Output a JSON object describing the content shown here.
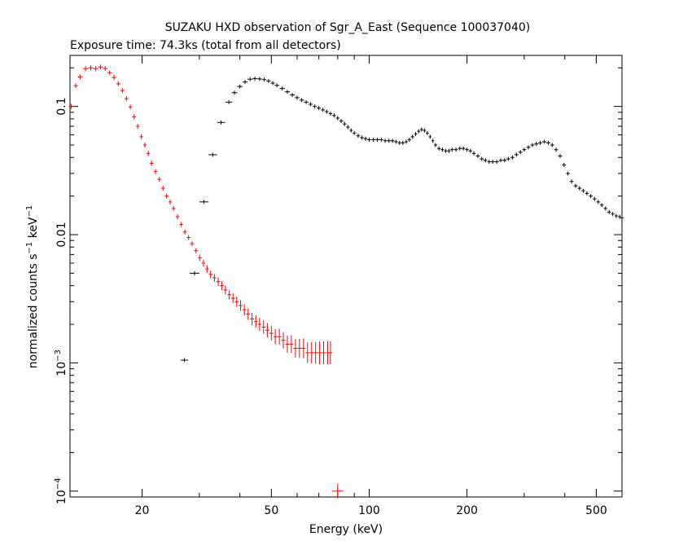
{
  "chart_data": {
    "type": "scatter",
    "title": "SUZAKU HXD observation of Sgr_A_East (Sequence 100037040)",
    "subtitle": "Exposure time: 74.3ks (total from all detectors)",
    "xlabel": "Energy (keV)",
    "ylabel": "normalized counts s-1 keV-1",
    "xscale": "log",
    "yscale": "log",
    "xlim": [
      12,
      600
    ],
    "ylim": [
      9e-05,
      0.25
    ],
    "x_ticks": [
      {
        "value": 20,
        "label": "20"
      },
      {
        "value": 50,
        "label": "50"
      },
      {
        "value": 100,
        "label": "100"
      },
      {
        "value": 200,
        "label": "200"
      },
      {
        "value": 500,
        "label": "500"
      }
    ],
    "y_ticks": [
      {
        "value": 0.1,
        "label": "0.1"
      },
      {
        "value": 0.01,
        "label": "0.01"
      },
      {
        "value": 0.001,
        "label": "10",
        "exp": "−3"
      },
      {
        "value": 0.0001,
        "label": "10",
        "exp": "−4"
      }
    ],
    "grid": false,
    "legend": "none",
    "series": [
      {
        "color": "#ff0000",
        "points": [
          [
            12.1,
            0.1
          ],
          [
            12.5,
            0.145
          ],
          [
            12.9,
            0.17
          ],
          [
            13.4,
            0.197
          ],
          [
            13.9,
            0.2
          ],
          [
            14.4,
            0.197
          ],
          [
            14.9,
            0.203
          ],
          [
            15.4,
            0.198
          ],
          [
            15.9,
            0.183
          ],
          [
            16.4,
            0.168
          ],
          [
            16.9,
            0.15
          ],
          [
            17.4,
            0.133
          ],
          [
            17.9,
            0.115
          ],
          [
            18.4,
            0.099
          ],
          [
            18.9,
            0.083
          ],
          [
            19.4,
            0.07
          ],
          [
            19.9,
            0.058
          ],
          [
            20.4,
            0.05
          ],
          [
            20.9,
            0.043
          ],
          [
            21.4,
            0.036
          ],
          [
            22.0,
            0.031
          ],
          [
            22.6,
            0.027
          ],
          [
            23.2,
            0.023
          ],
          [
            23.8,
            0.02
          ],
          [
            24.4,
            0.018
          ],
          [
            25.0,
            0.016
          ],
          [
            25.7,
            0.0138
          ],
          [
            26.4,
            0.012
          ],
          [
            27.1,
            0.0105
          ],
          [
            27.8,
            0.0095
          ],
          [
            28.5,
            0.0085
          ],
          [
            29.3,
            0.0075
          ],
          [
            30.1,
            0.0066
          ],
          [
            30.9,
            0.006
          ],
          [
            31.7,
            0.0054
          ],
          [
            32.5,
            0.0049
          ],
          [
            33.4,
            0.0046
          ],
          [
            34.3,
            0.0043
          ],
          [
            35.2,
            0.004
          ],
          [
            36.1,
            0.0037
          ],
          [
            37.1,
            0.0034
          ],
          [
            38.1,
            0.0032
          ],
          [
            39.1,
            0.003
          ],
          [
            40.2,
            0.0028
          ],
          [
            41.3,
            0.0026
          ],
          [
            42.4,
            0.0024
          ],
          [
            43.6,
            0.0022
          ],
          [
            44.8,
            0.0021
          ],
          [
            46.0,
            0.002
          ],
          [
            47.3,
            0.0019
          ],
          [
            48.6,
            0.0018
          ],
          [
            50.0,
            0.0017
          ],
          [
            51.4,
            0.0016
          ],
          [
            52.9,
            0.0016
          ],
          [
            54.4,
            0.0015
          ],
          [
            56.0,
            0.0014
          ],
          [
            57.6,
            0.0014
          ],
          [
            59.3,
            0.0013
          ],
          [
            61.0,
            0.0013
          ],
          [
            62.8,
            0.0013
          ],
          [
            64.6,
            0.0012
          ],
          [
            66.5,
            0.0012
          ],
          [
            68.4,
            0.0012
          ],
          [
            70.4,
            0.0012
          ],
          [
            72.4,
            0.0012
          ],
          [
            74.5,
            0.0012
          ],
          [
            76.0,
            0.0012
          ]
        ],
        "outlier": [
          80.0,
          0.0001
        ]
      },
      {
        "color": "#000000",
        "points": [
          [
            27.0,
            0.00105
          ],
          [
            29.0,
            0.005
          ],
          [
            31.0,
            0.018
          ],
          [
            33.0,
            0.042
          ],
          [
            35.0,
            0.075
          ],
          [
            37.0,
            0.108
          ],
          [
            38.5,
            0.128
          ],
          [
            40.0,
            0.143
          ],
          [
            41.5,
            0.155
          ],
          [
            43.0,
            0.163
          ],
          [
            44.5,
            0.165
          ],
          [
            46.0,
            0.164
          ],
          [
            47.5,
            0.162
          ],
          [
            49.0,
            0.158
          ],
          [
            50.5,
            0.152
          ],
          [
            52.0,
            0.146
          ],
          [
            54.0,
            0.138
          ],
          [
            56.0,
            0.13
          ],
          [
            58.0,
            0.123
          ],
          [
            60.0,
            0.117
          ],
          [
            62.0,
            0.112
          ],
          [
            64.0,
            0.108
          ],
          [
            66.0,
            0.104
          ],
          [
            68.0,
            0.1
          ],
          [
            70.0,
            0.097
          ],
          [
            72.0,
            0.094
          ],
          [
            74.0,
            0.091
          ],
          [
            76.0,
            0.088
          ],
          [
            78.0,
            0.085
          ],
          [
            80.0,
            0.081
          ],
          [
            82.0,
            0.077
          ],
          [
            84.0,
            0.073
          ],
          [
            86.0,
            0.069
          ],
          [
            88.0,
            0.065
          ],
          [
            90.0,
            0.062
          ],
          [
            92.5,
            0.059
          ],
          [
            95.0,
            0.057
          ],
          [
            97.5,
            0.056
          ],
          [
            100,
            0.055
          ],
          [
            103,
            0.055
          ],
          [
            106,
            0.055
          ],
          [
            109,
            0.055
          ],
          [
            112,
            0.054
          ],
          [
            115,
            0.054
          ],
          [
            118,
            0.054
          ],
          [
            121,
            0.053
          ],
          [
            124,
            0.052
          ],
          [
            127,
            0.052
          ],
          [
            130,
            0.053
          ],
          [
            133,
            0.055
          ],
          [
            136,
            0.058
          ],
          [
            139,
            0.061
          ],
          [
            142,
            0.064
          ],
          [
            145,
            0.066
          ],
          [
            148,
            0.065
          ],
          [
            151,
            0.062
          ],
          [
            154,
            0.058
          ],
          [
            157,
            0.054
          ],
          [
            160,
            0.05
          ],
          [
            164,
            0.047
          ],
          [
            168,
            0.046
          ],
          [
            172,
            0.045
          ],
          [
            176,
            0.045
          ],
          [
            180,
            0.046
          ],
          [
            185,
            0.046
          ],
          [
            190,
            0.047
          ],
          [
            195,
            0.047
          ],
          [
            200,
            0.046
          ],
          [
            205,
            0.045
          ],
          [
            210,
            0.043
          ],
          [
            216,
            0.041
          ],
          [
            222,
            0.039
          ],
          [
            228,
            0.038
          ],
          [
            234,
            0.037
          ],
          [
            240,
            0.037
          ],
          [
            247,
            0.037
          ],
          [
            254,
            0.038
          ],
          [
            261,
            0.038
          ],
          [
            268,
            0.039
          ],
          [
            276,
            0.04
          ],
          [
            284,
            0.042
          ],
          [
            292,
            0.044
          ],
          [
            300,
            0.046
          ],
          [
            309,
            0.048
          ],
          [
            318,
            0.05
          ],
          [
            327,
            0.051
          ],
          [
            336,
            0.052
          ],
          [
            346,
            0.053
          ],
          [
            356,
            0.052
          ],
          [
            366,
            0.05
          ],
          [
            376,
            0.046
          ],
          [
            387,
            0.041
          ],
          [
            398,
            0.035
          ],
          [
            409,
            0.03
          ],
          [
            420,
            0.026
          ],
          [
            432,
            0.024
          ],
          [
            444,
            0.023
          ],
          [
            456,
            0.022
          ],
          [
            468,
            0.021
          ],
          [
            481,
            0.02
          ],
          [
            494,
            0.019
          ],
          [
            507,
            0.018
          ],
          [
            520,
            0.017
          ],
          [
            534,
            0.016
          ],
          [
            548,
            0.015
          ],
          [
            562,
            0.0145
          ],
          [
            576,
            0.014
          ],
          [
            590,
            0.0138
          ],
          [
            600,
            0.0135
          ]
        ]
      }
    ]
  }
}
